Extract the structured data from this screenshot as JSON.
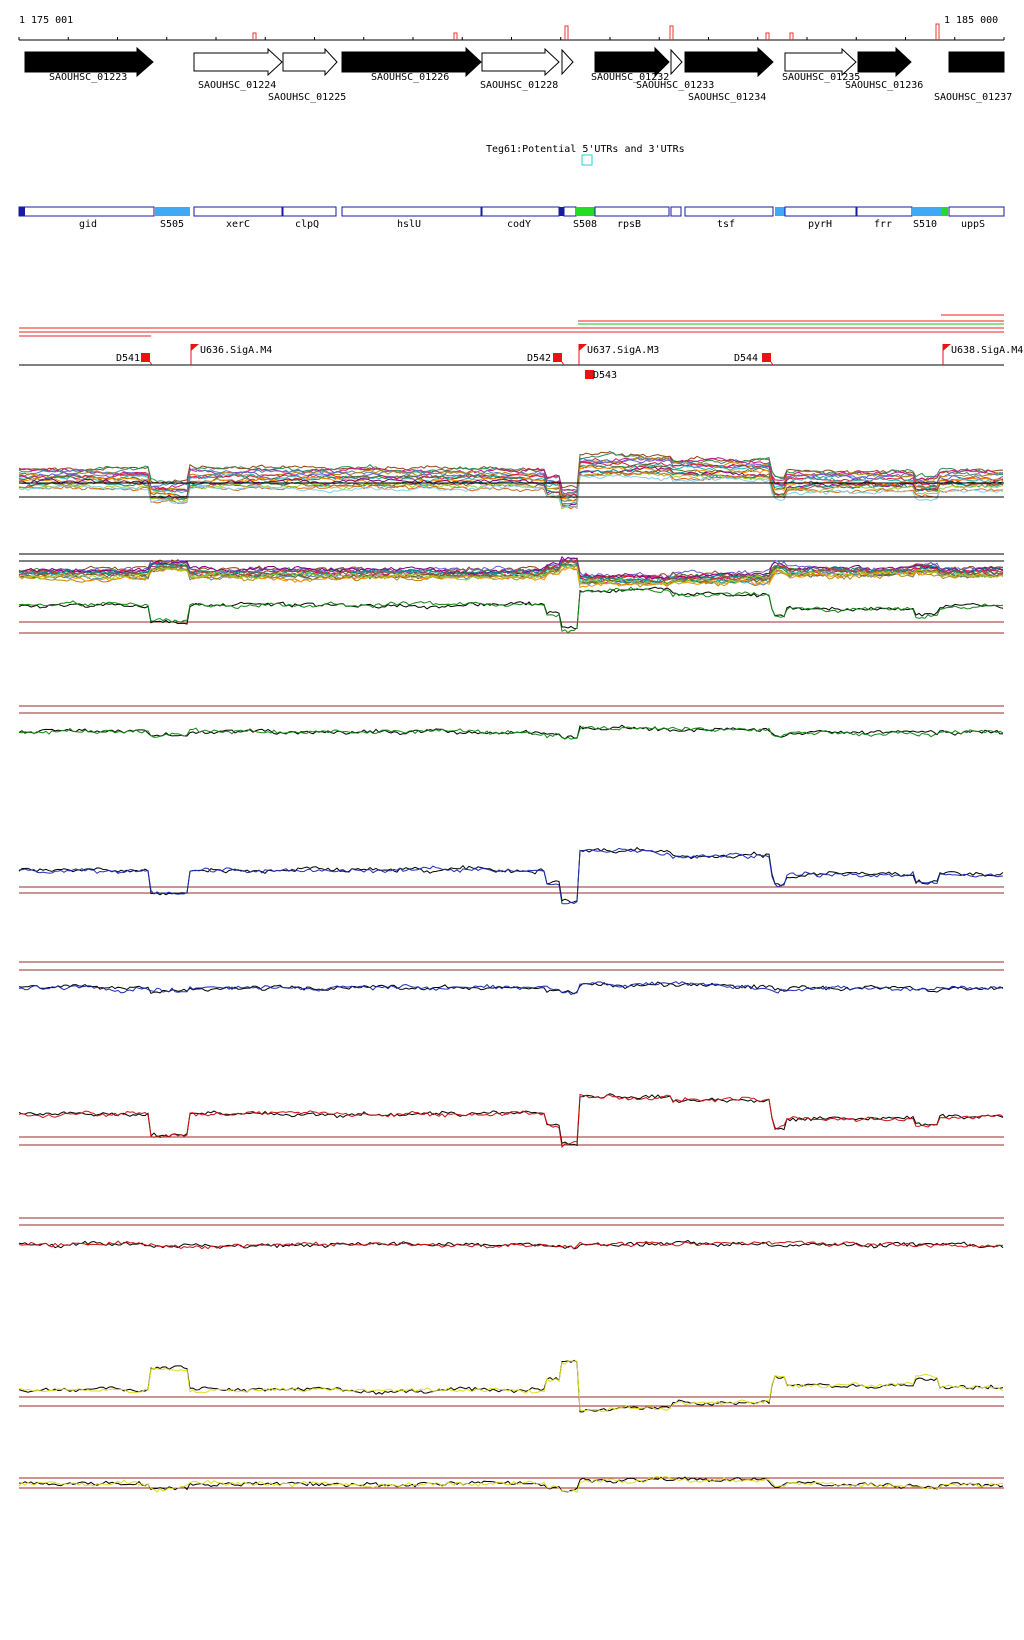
{
  "ruler": {
    "start_label": "1 175 001",
    "end_label": "1 185 000"
  },
  "genes": [
    {
      "id": "SAOUHSC_01223",
      "strand": "+",
      "filled": true
    },
    {
      "id": "SAOUHSC_01224",
      "strand": "+",
      "filled": false
    },
    {
      "id": "SAOUHSC_01225",
      "strand": "+",
      "filled": false
    },
    {
      "id": "SAOUHSC_01226",
      "strand": "+",
      "filled": true
    },
    {
      "id": "SAOUHSC_01228",
      "strand": "+",
      "filled": false
    },
    {
      "id": "SAOUHSC_01232",
      "strand": "+",
      "filled": true
    },
    {
      "id": "SAOUHSC_01233",
      "strand": "+",
      "filled": false
    },
    {
      "id": "SAOUHSC_01234",
      "strand": "+",
      "filled": true
    },
    {
      "id": "SAOUHSC_01235",
      "strand": "+",
      "filled": false
    },
    {
      "id": "SAOUHSC_01236",
      "strand": "+",
      "filled": true
    },
    {
      "id": "SAOUHSC_01237",
      "strand": "+",
      "filled": true
    }
  ],
  "utr_track": {
    "label": "Teg61:Potential 5'UTRs and 3'UTRs"
  },
  "annotations": [
    {
      "label": "gid",
      "type": "gene"
    },
    {
      "label": "S505",
      "type": "segment"
    },
    {
      "label": "xerC",
      "type": "gene"
    },
    {
      "label": "clpQ",
      "type": "gene"
    },
    {
      "label": "hslU",
      "type": "gene"
    },
    {
      "label": "codY",
      "type": "gene"
    },
    {
      "label": "S508",
      "type": "segment"
    },
    {
      "label": "rpsB",
      "type": "gene"
    },
    {
      "label": "tsf",
      "type": "gene"
    },
    {
      "label": "pyrH",
      "type": "gene"
    },
    {
      "label": "frr",
      "type": "gene"
    },
    {
      "label": "S510",
      "type": "segment"
    },
    {
      "label": "uppS",
      "type": "gene"
    }
  ],
  "promoters": [
    {
      "label": "U636.SigA.M4"
    },
    {
      "label": "U637.SigA.M3"
    },
    {
      "label": "U638.SigA.M4"
    }
  ],
  "terminators": [
    {
      "label": "D541"
    },
    {
      "label": "D542"
    },
    {
      "label": "D543"
    },
    {
      "label": "D544"
    }
  ],
  "colors": {
    "gene_fill": "#000000",
    "annotation_border": "#1a1aa0",
    "segment_blue": "#3fa9f5",
    "segment_green": "#22dd22",
    "transcript_red": "#ee2222",
    "transcript_green": "#22bb22",
    "marker_red": "#ee1111",
    "utr_box": "#33cccc",
    "threshold": "#9c2a2a",
    "track_green": "#118811",
    "track_blue": "#1a2fb0",
    "track_red": "#cc1111",
    "track_yellow": "#dddd22",
    "track_black": "#000000"
  }
}
